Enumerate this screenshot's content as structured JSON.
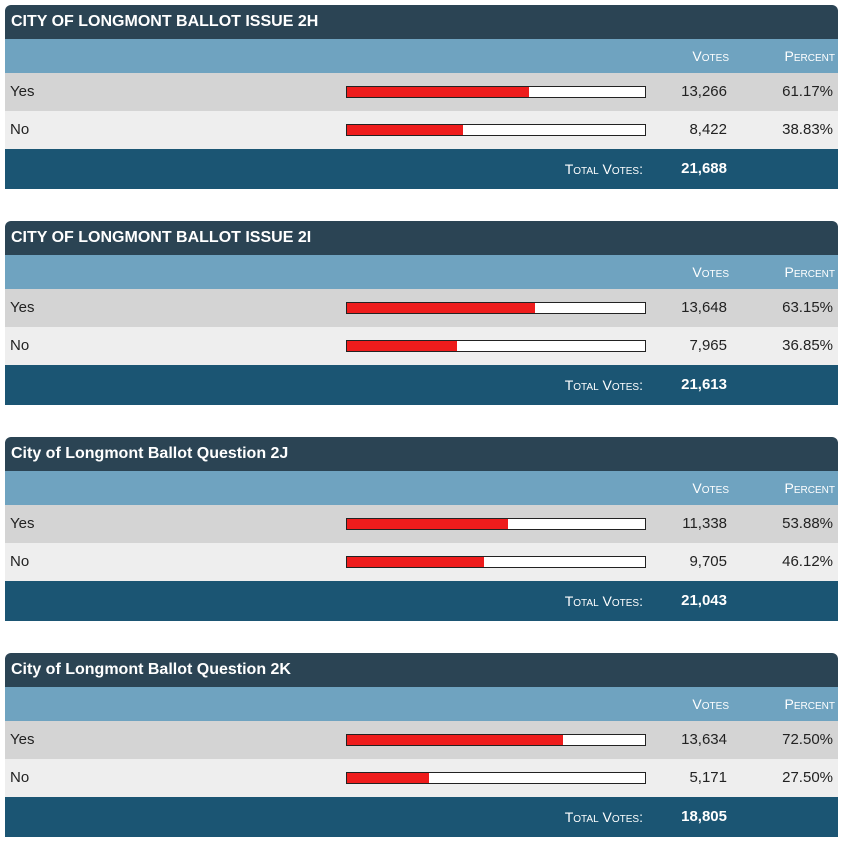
{
  "labels": {
    "votes": "Votes",
    "percent": "Percent",
    "total_votes": "Total Votes:"
  },
  "colors": {
    "title_bg": "#2b4454",
    "header_bg": "#6fa3c0",
    "total_bg": "#1b5573",
    "bar_fill": "#ee1c1c"
  },
  "races": [
    {
      "title": "CITY OF LONGMONT BALLOT ISSUE 2H",
      "choices": [
        {
          "name": "Yes",
          "votes": "13,266",
          "percent": "61.17%",
          "share": 0.6117
        },
        {
          "name": "No",
          "votes": "8,422",
          "percent": "38.83%",
          "share": 0.3883
        }
      ],
      "total": "21,688"
    },
    {
      "title": "CITY OF LONGMONT BALLOT ISSUE 2I",
      "choices": [
        {
          "name": "Yes",
          "votes": "13,648",
          "percent": "63.15%",
          "share": 0.6315
        },
        {
          "name": "No",
          "votes": "7,965",
          "percent": "36.85%",
          "share": 0.3685
        }
      ],
      "total": "21,613"
    },
    {
      "title": "City of Longmont Ballot Question 2J",
      "choices": [
        {
          "name": "Yes",
          "votes": "11,338",
          "percent": "53.88%",
          "share": 0.5388
        },
        {
          "name": "No",
          "votes": "9,705",
          "percent": "46.12%",
          "share": 0.4612
        }
      ],
      "total": "21,043"
    },
    {
      "title": "City of Longmont Ballot Question 2K",
      "choices": [
        {
          "name": "Yes",
          "votes": "13,634",
          "percent": "72.50%",
          "share": 0.725
        },
        {
          "name": "No",
          "votes": "5,171",
          "percent": "27.50%",
          "share": 0.275
        }
      ],
      "total": "18,805"
    }
  ]
}
